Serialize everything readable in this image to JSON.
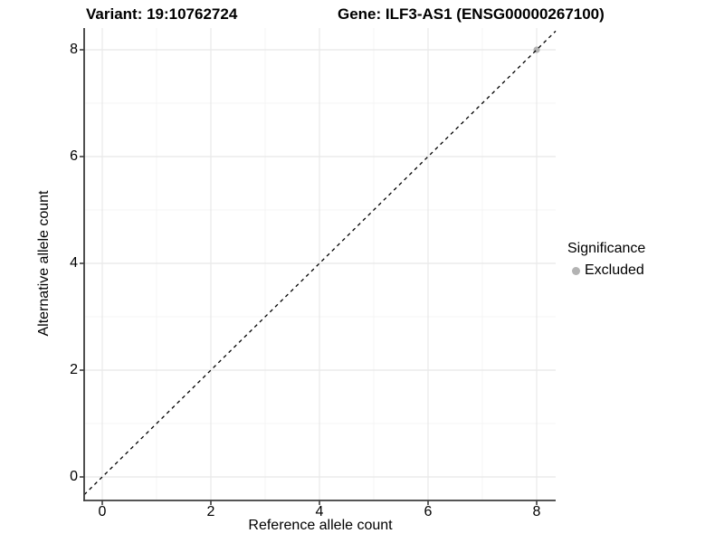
{
  "colors": {
    "background": "#ffffff",
    "text": "#000000",
    "axis": "#3d3d3d",
    "grid_major": "#e8e8e8",
    "grid_minor": "#f4f4f4",
    "identity_line": "#000000",
    "excluded_point": "#b3b3b3"
  },
  "chart_data": {
    "type": "scatter",
    "title_left": "Variant: 19:10762724",
    "title_right": "Gene: ILF3-AS1 (ENSG00000267100)",
    "xlabel": "Reference allele count",
    "ylabel": "Alternative allele count",
    "xlim": [
      -0.35,
      8.35
    ],
    "ylim": [
      -0.45,
      8.4
    ],
    "x_ticks": [
      0,
      2,
      4,
      6,
      8
    ],
    "y_ticks": [
      0,
      2,
      4,
      6,
      8
    ],
    "x_minor_breaks": [
      1,
      3,
      5,
      7
    ],
    "y_minor_breaks": [
      1,
      3,
      5,
      7
    ],
    "grid": "on",
    "identity_line": {
      "style": "dashed",
      "slope": 1,
      "intercept": 0,
      "color": "#000000"
    },
    "series": [
      {
        "name": "Excluded",
        "color": "#b3b3b3",
        "points": [
          {
            "x": 8,
            "y": 8
          }
        ]
      }
    ],
    "legend": {
      "title": "Significance",
      "position": "right",
      "entries": [
        {
          "label": "Excluded",
          "color": "#b3b3b3"
        }
      ]
    }
  }
}
